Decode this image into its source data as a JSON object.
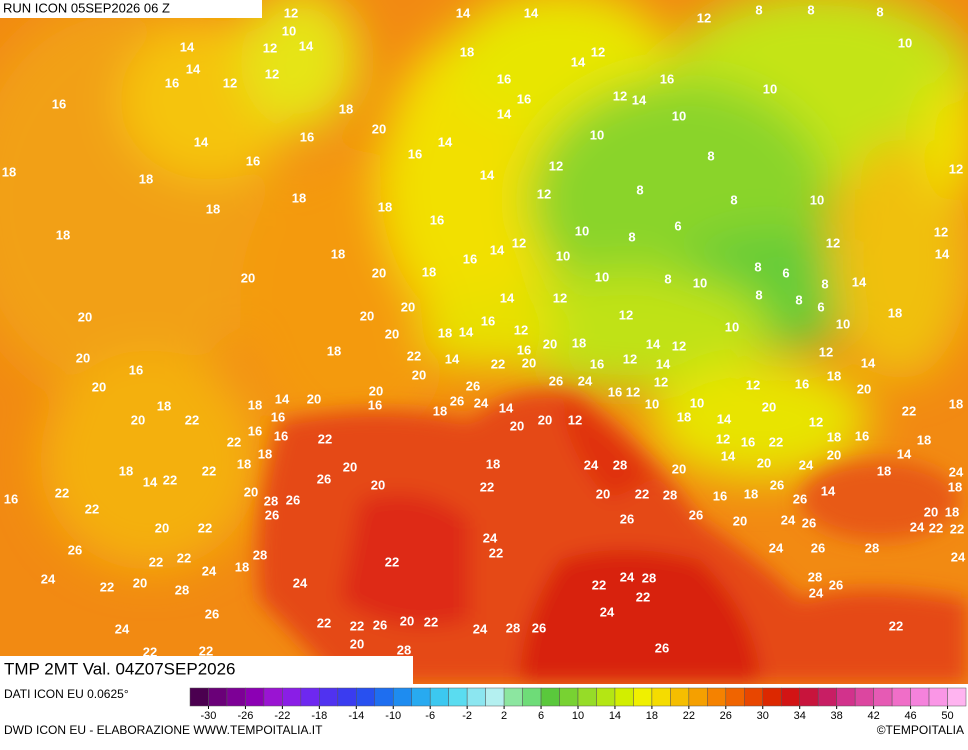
{
  "header": {
    "run": "RUN ICON 05SEP2026 06 Z",
    "field": "TMP 2MT Val. 04Z07SEP2026"
  },
  "footer": {
    "source": "DATI ICON EU 0.0625°",
    "credit": "DWD ICON EU - ELABORAZIONE WWW.TEMPOITALIA.IT",
    "copyright": "©TEMPOITALIA"
  },
  "colorbar": {
    "range": [
      -32,
      52
    ],
    "colors": [
      "#4b0050",
      "#6a0078",
      "#7d0096",
      "#8c00b4",
      "#9a14d2",
      "#8a1ee6",
      "#6e28f0",
      "#5032f0",
      "#3a3cf0",
      "#2850f0",
      "#1e6ef0",
      "#1e8cf0",
      "#28aaf0",
      "#3cc8f0",
      "#5adcf0",
      "#8ce6f0",
      "#b4f0f0",
      "#8ce6a0",
      "#6edc78",
      "#5ac83c",
      "#78d232",
      "#96dc28",
      "#b4e614",
      "#d2ee00",
      "#f0f000",
      "#f5dc00",
      "#f5be00",
      "#f5a000",
      "#f58200",
      "#f06400",
      "#e84600",
      "#dc2800",
      "#d21414",
      "#c8143c",
      "#c81e64",
      "#d2328c",
      "#dc46a0",
      "#e65ab4",
      "#f06ec8",
      "#f582dc",
      "#fa96e6",
      "#ffb4f0"
    ],
    "ticks": [
      -30,
      -26,
      -22,
      -18,
      -14,
      -10,
      -6,
      -2,
      2,
      6,
      10,
      14,
      18,
      22,
      26,
      30,
      34,
      38,
      42,
      46,
      50
    ]
  },
  "labels": [
    12,
    14,
    14,
    12,
    8,
    8,
    8,
    10,
    12,
    14,
    14,
    10,
    18,
    12,
    14,
    16,
    12,
    12,
    14,
    16,
    16,
    16,
    16,
    12,
    14,
    10,
    18,
    14,
    10,
    20,
    16,
    14,
    10,
    14,
    18,
    16,
    16,
    8,
    12,
    12,
    18,
    14,
    18,
    18,
    12,
    8,
    8,
    10,
    18,
    16,
    18,
    10,
    8,
    6,
    12,
    14,
    12,
    12,
    18,
    16,
    10,
    8,
    6,
    8,
    14,
    14,
    20,
    20,
    18,
    10,
    8,
    10,
    20,
    14,
    12,
    8,
    8,
    6,
    18,
    20,
    20,
    14,
    16,
    12,
    12,
    10,
    10,
    18,
    20,
    18,
    22,
    14,
    16,
    20,
    18,
    14,
    12,
    12,
    14,
    20,
    16,
    20,
    22,
    20,
    16,
    12,
    14,
    18,
    20,
    26,
    26,
    24,
    16,
    12,
    12,
    12,
    16,
    20,
    20,
    14,
    18,
    22,
    18,
    20,
    16,
    18,
    26,
    24,
    14,
    10,
    10,
    20,
    22,
    18,
    16,
    20,
    16,
    16,
    22,
    20,
    20,
    12,
    18,
    14,
    12,
    18,
    16,
    22,
    18,
    12,
    16,
    22,
    18,
    18,
    22,
    20,
    18,
    22,
    14,
    18,
    24,
    28,
    20,
    14,
    20,
    24,
    20,
    18,
    14,
    24,
    26,
    20,
    22,
    16,
    20,
    28,
    26,
    22,
    20,
    22,
    28,
    16,
    18,
    26,
    26,
    14,
    18,
    22,
    26,
    26,
    26,
    20,
    24,
    26,
    24,
    22,
    20,
    18,
    22,
    20,
    22,
    24,
    22,
    26,
    28,
    22,
    24,
    26,
    28,
    24,
    22,
    22,
    18,
    24,
    24,
    22,
    20,
    28,
    24,
    22,
    24,
    28,
    22,
    28,
    26,
    24,
    26,
    24,
    24,
    22,
    22,
    26,
    20,
    22,
    24,
    28,
    26,
    22,
    22,
    22,
    20,
    28,
    26
  ]
}
